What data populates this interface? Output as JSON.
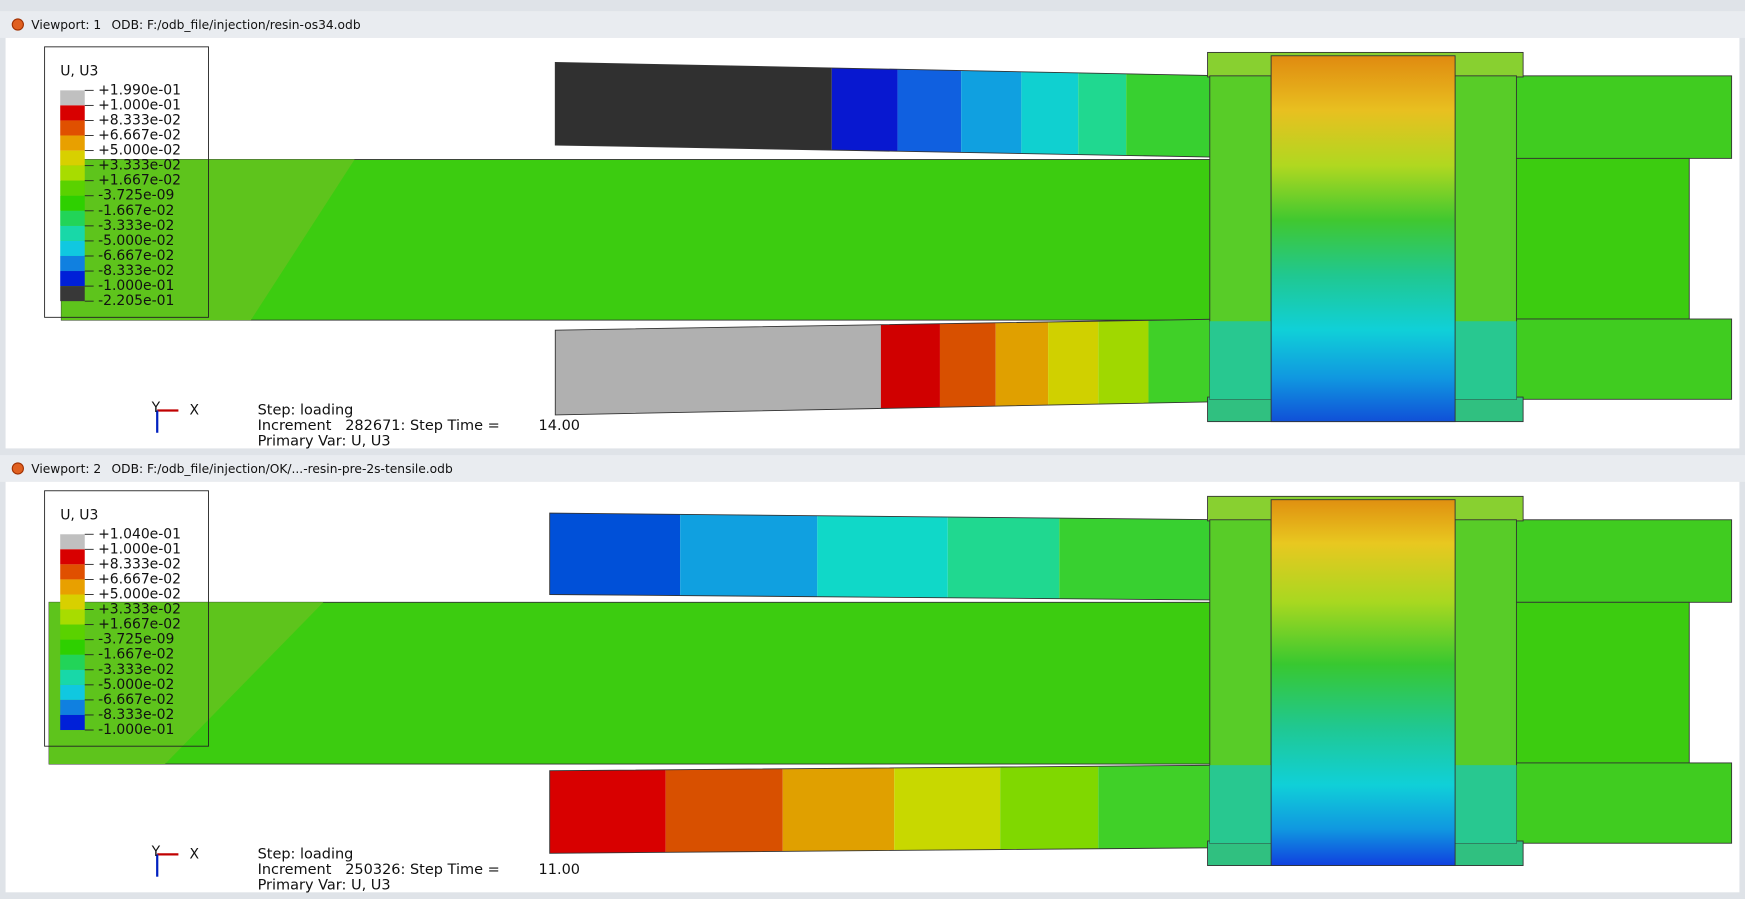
{
  "viewports": [
    {
      "title": "Viewport: 1",
      "odb": "ODB: F:/odb_file/injection/resin-os34.odb",
      "legend": {
        "title": "U, U3",
        "labels": [
          "+1.990e-01",
          "+1.000e-01",
          "+8.333e-02",
          "+6.667e-02",
          "+5.000e-02",
          "+3.333e-02",
          "+1.667e-02",
          "-3.725e-09",
          "-1.667e-02",
          "-3.333e-02",
          "-5.000e-02",
          "-6.667e-02",
          "-8.333e-02",
          "-1.000e-01",
          "-2.205e-01"
        ],
        "colors": [
          "#c0c0c0",
          "#d80000",
          "#e05000",
          "#e8a000",
          "#d8d000",
          "#a8dc00",
          "#5ad200",
          "#2ed000",
          "#22d458",
          "#18d8a8",
          "#10c8e0",
          "#1080e0",
          "#0020d8",
          "#383838"
        ]
      },
      "step": "Step: loading",
      "increment": "Increment   282671: Step Time =",
      "step_time": "14.00",
      "primary_var": "Primary Var: U, U3",
      "triad": {
        "x": "X",
        "y": "Y"
      }
    },
    {
      "title": "Viewport: 2",
      "odb": "ODB: F:/odb_file/injection/OK/...-resin-pre-2s-tensile.odb",
      "legend": {
        "title": "U, U3",
        "labels": [
          "+1.040e-01",
          "+1.000e-01",
          "+8.333e-02",
          "+6.667e-02",
          "+5.000e-02",
          "+3.333e-02",
          "+1.667e-02",
          "-3.725e-09",
          "-1.667e-02",
          "-3.333e-02",
          "-5.000e-02",
          "-6.667e-02",
          "-8.333e-02",
          "-1.000e-01"
        ],
        "colors": [
          "#c0c0c0",
          "#d80000",
          "#e05000",
          "#e8a000",
          "#d8d000",
          "#a8dc00",
          "#5ad200",
          "#2ed000",
          "#22d458",
          "#18d8a8",
          "#10c8e0",
          "#1080e0",
          "#0020d8"
        ]
      },
      "step": "Step: loading",
      "increment": "Increment   250326: Step Time =",
      "step_time": "11.00",
      "primary_var": "Primary Var: U, U3",
      "triad": {
        "x": "X",
        "y": "Y"
      }
    }
  ]
}
